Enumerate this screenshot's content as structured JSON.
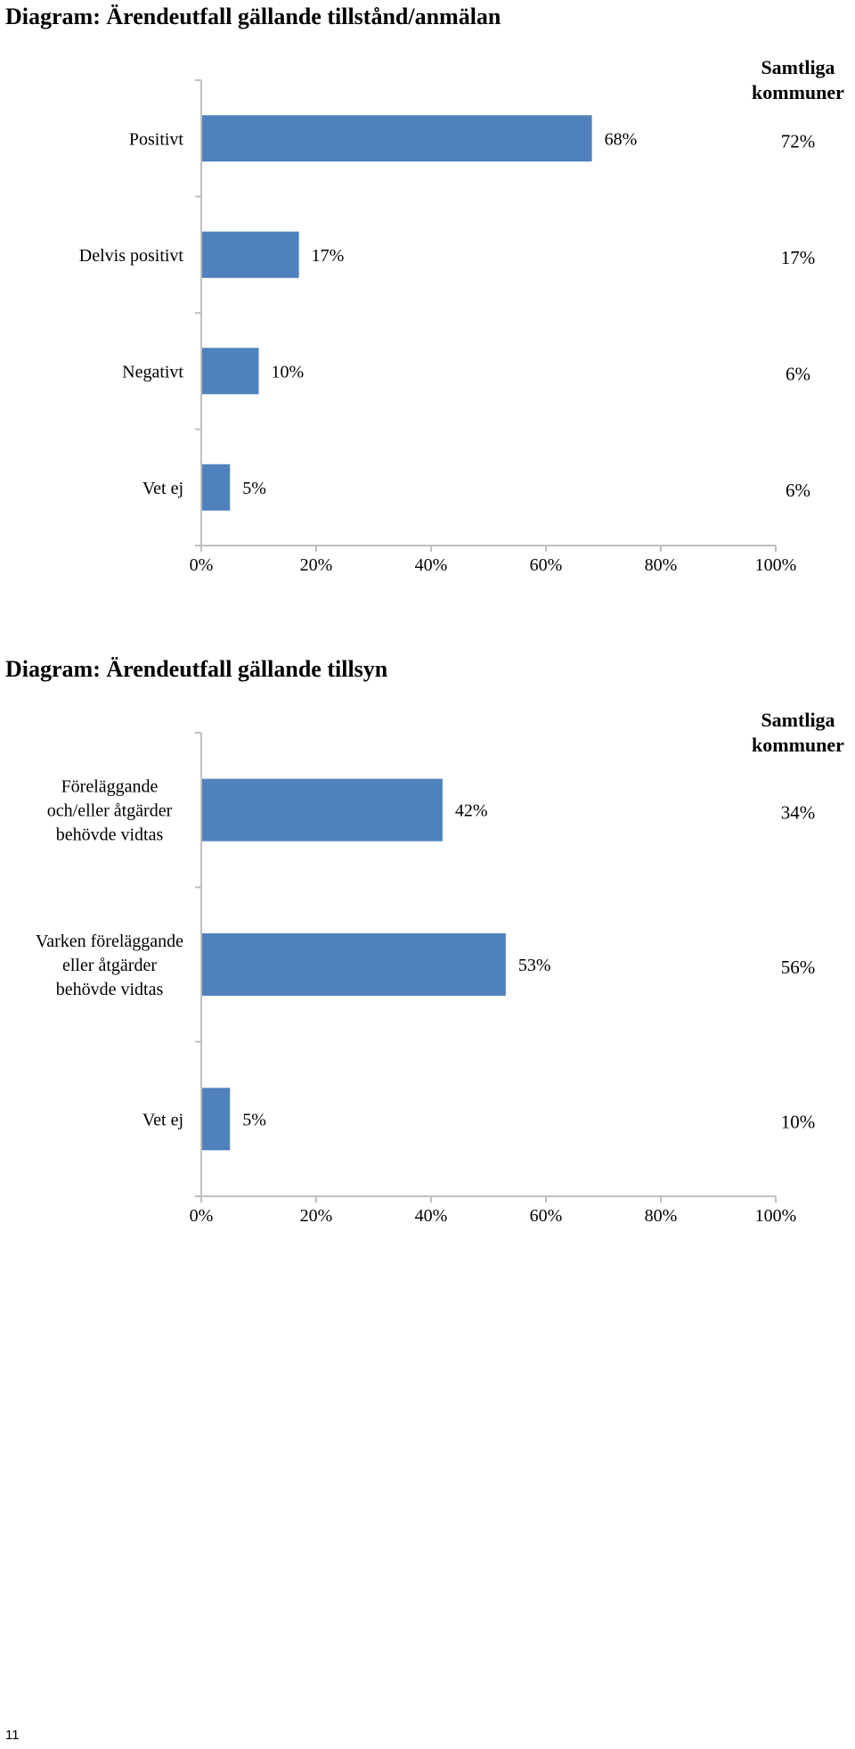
{
  "chart_data": [
    {
      "type": "bar",
      "orientation": "horizontal",
      "title": "Diagram: Ärendeutfall gällande tillstånd/anmälan",
      "categories": [
        "Positivt",
        "Delvis positivt",
        "Negativt",
        "Vet ej"
      ],
      "values": [
        68,
        17,
        10,
        5
      ],
      "value_labels": [
        "68%",
        "17%",
        "10%",
        "5%"
      ],
      "comparison_header": "Samtliga kommuner",
      "comparison_values": [
        72,
        17,
        6,
        6
      ],
      "comparison_labels": [
        "72%",
        "17%",
        "6%",
        "6%"
      ],
      "xlim": [
        0,
        100
      ],
      "x_ticks": [
        "0%",
        "20%",
        "40%",
        "60%",
        "80%",
        "100%"
      ],
      "bar_color": "#4F81BD",
      "grid": false
    },
    {
      "type": "bar",
      "orientation": "horizontal",
      "title": "Diagram: Ärendeutfall gällande tillsyn",
      "categories": [
        [
          "Föreläggande",
          "och/eller åtgärder",
          "behövde vidtas"
        ],
        [
          "Varken föreläggande",
          "eller åtgärder",
          "behövde vidtas"
        ],
        [
          "Vet ej"
        ]
      ],
      "values": [
        42,
        53,
        5
      ],
      "value_labels": [
        "42%",
        "53%",
        "5%"
      ],
      "comparison_header": "Samtliga kommuner",
      "comparison_values": [
        34,
        56,
        10
      ],
      "comparison_labels": [
        "34%",
        "56%",
        "10%"
      ],
      "xlim": [
        0,
        100
      ],
      "x_ticks": [
        "0%",
        "20%",
        "40%",
        "60%",
        "80%",
        "100%"
      ],
      "bar_color": "#4F81BD",
      "grid": false
    }
  ],
  "page_number": "11"
}
